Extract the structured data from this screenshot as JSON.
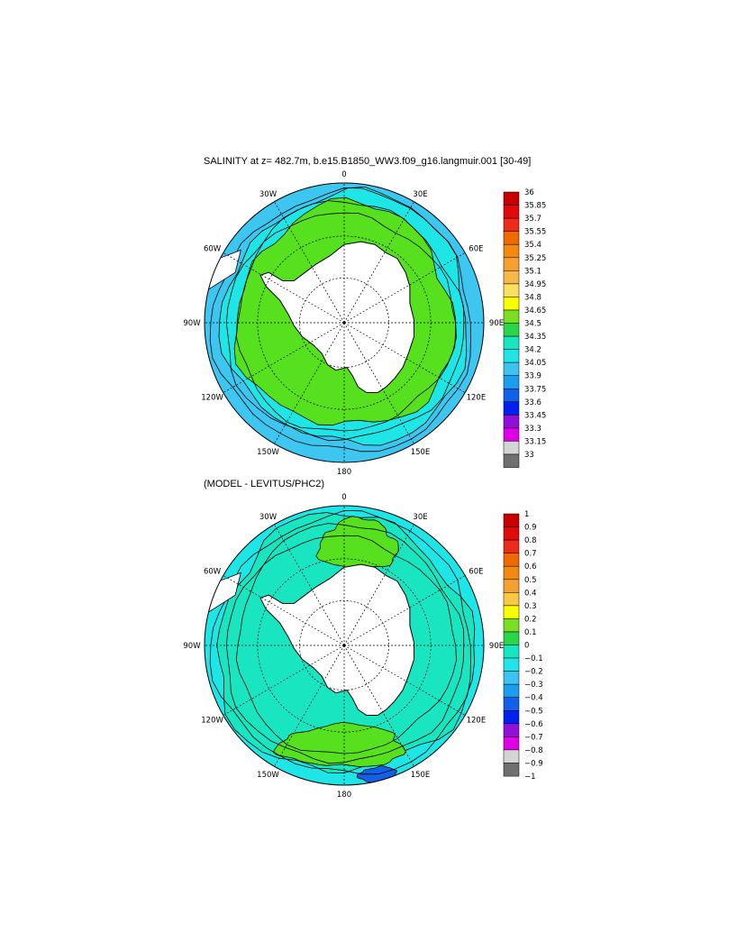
{
  "panel1": {
    "title": "SALINITY at z= 482.7m, b.e15.B1850_WW3.f09_g16.langmuir.001 [30-49]",
    "lon_labels": [
      "0",
      "30E",
      "60E",
      "90E",
      "120E",
      "150E",
      "180",
      "150W",
      "120W",
      "90W",
      "60W",
      "30W"
    ],
    "colorbar": {
      "labels": [
        "36",
        "35.85",
        "35.7",
        "35.55",
        "35.4",
        "35.25",
        "35.1",
        "34.95",
        "34.8",
        "34.65",
        "34.5",
        "34.35",
        "34.2",
        "34.05",
        "33.9",
        "33.75",
        "33.6",
        "33.45",
        "33.3",
        "33.15",
        "33"
      ],
      "colors": [
        "#c80000",
        "#e00a0a",
        "#ee2a1a",
        "#f06a00",
        "#f28a10",
        "#f6a030",
        "#f7b84a",
        "#fae060",
        "#f8ff00",
        "#78e020",
        "#28d848",
        "#18e6c0",
        "#20e4e6",
        "#3cc4f0",
        "#1a9ef0",
        "#1060e8",
        "#0020f0",
        "#9010d8",
        "#e000e8",
        "#d4d4d4"
      ],
      "bottom_color": "#707070"
    }
  },
  "panel2": {
    "title": "(MODEL - LEVITUS/PHC2)",
    "lon_labels": [
      "0",
      "30E",
      "60E",
      "90E",
      "120E",
      "150E",
      "180",
      "150W",
      "120W",
      "90W",
      "60W",
      "30W"
    ],
    "colorbar": {
      "labels": [
        "1",
        "0.9",
        "0.8",
        "0.7",
        "0.6",
        "0.5",
        "0.4",
        "0.3",
        "0.2",
        "0.1",
        "0",
        "−0.1",
        "−0.2",
        "−0.3",
        "−0.4",
        "−0.5",
        "−0.6",
        "−0.7",
        "−0.8",
        "−0.9",
        "−1"
      ],
      "colors": [
        "#c80000",
        "#e00a0a",
        "#ee2a1a",
        "#f06a00",
        "#f28a10",
        "#f6a030",
        "#fac840",
        "#f8ff00",
        "#78e020",
        "#28d848",
        "#18e6c0",
        "#20e4e6",
        "#3cc4f0",
        "#1a9ef0",
        "#1060e8",
        "#0020f0",
        "#9010d8",
        "#e000e8",
        "#d4d4d4",
        "#707070"
      ]
    }
  },
  "colors": {
    "land": "#ffffff",
    "outline": "#000000",
    "zone_green": "#56e01e",
    "zone_cyan": "#1fe6e6",
    "zone_lightblue": "#3dc6f0",
    "zone_teal": "#19e6c0",
    "zone_blue": "#1060e8"
  }
}
